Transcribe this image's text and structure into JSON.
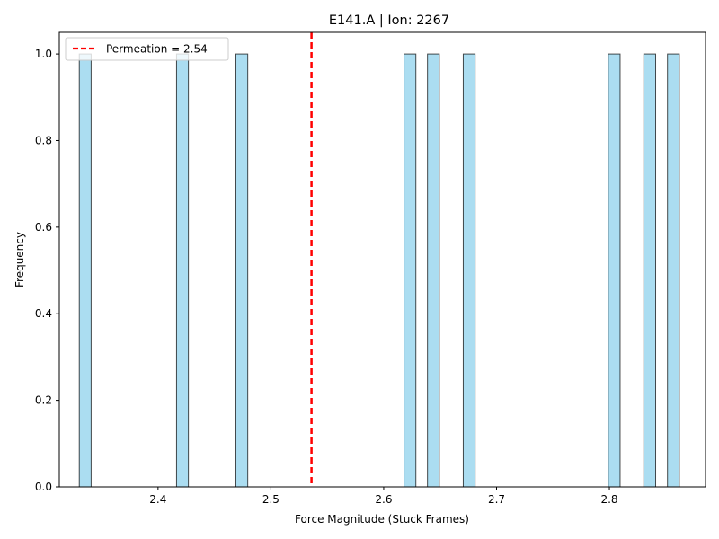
{
  "chart_data": {
    "type": "bar",
    "title": "E141.A | Ion: 2267",
    "xlabel": "Force Magnitude (Stuck Frames)",
    "ylabel": "Frequency",
    "xlim": [
      2.3125,
      2.8852
    ],
    "ylim": [
      0,
      1.05
    ],
    "x_ticks": [
      2.4,
      2.5,
      2.6,
      2.7,
      2.8
    ],
    "x_tick_labels": [
      "2.4",
      "2.5",
      "2.6",
      "2.7",
      "2.8"
    ],
    "y_ticks": [
      0.0,
      0.2,
      0.4,
      0.6,
      0.8,
      1.0
    ],
    "y_tick_labels": [
      "0.0",
      "0.2",
      "0.4",
      "0.6",
      "0.8",
      "1.0"
    ],
    "bin_width": 0.0105,
    "bins": [
      {
        "left": 2.3302,
        "count": 1
      },
      {
        "left": 2.4164,
        "count": 1
      },
      {
        "left": 2.469,
        "count": 1
      },
      {
        "left": 2.618,
        "count": 1
      },
      {
        "left": 2.6388,
        "count": 1
      },
      {
        "left": 2.6705,
        "count": 1
      },
      {
        "left": 2.799,
        "count": 1
      },
      {
        "left": 2.8305,
        "count": 1
      },
      {
        "left": 2.8515,
        "count": 1
      }
    ],
    "bar_color": "#87CEEB",
    "bar_edge_color": "#000000",
    "reference_line": {
      "x": 2.536,
      "label": "Permeation = 2.54",
      "color": "#ff0000",
      "style": "dashed"
    },
    "legend": {
      "position": "upper-left",
      "entries": [
        "Permeation = 2.54"
      ]
    },
    "grid": false
  }
}
